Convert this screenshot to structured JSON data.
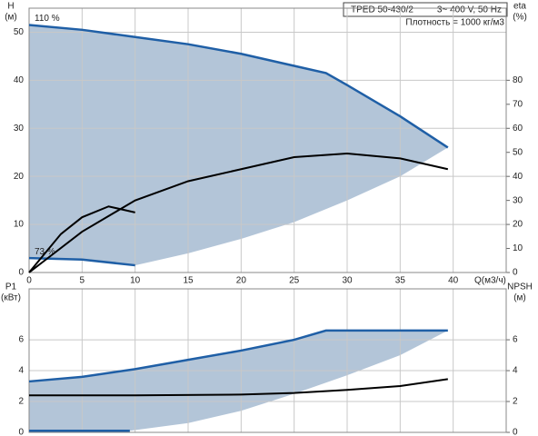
{
  "chart_data": [
    {
      "type": "line",
      "title": "TPED 50-430/2",
      "subtitle": "3~ 400 V, 50 Hz",
      "annotation": "Плотность = 1000 кг/м3",
      "y_label": "H",
      "y_unit": "(м)",
      "y2_label": "eta",
      "y2_unit": "(%)",
      "x_label": "Q(м3/ч)",
      "xlim": [
        0,
        45
      ],
      "xticks": [
        0,
        5,
        10,
        15,
        20,
        25,
        30,
        35,
        40
      ],
      "show_xtick_labels": true,
      "ylim": [
        0,
        55
      ],
      "yticks": [
        0,
        10,
        20,
        30,
        40,
        50
      ],
      "y2lim": [
        0,
        110
      ],
      "y2ticks": [
        0,
        10,
        20,
        30,
        40,
        50,
        60,
        70,
        80
      ],
      "grid": true,
      "area": {
        "color": "#b3c5d8",
        "x": [
          10,
          15,
          20,
          25,
          30,
          35,
          39.5
        ],
        "values": [
          1.5,
          4,
          7,
          10.5,
          15,
          20,
          26
        ]
      },
      "series": [
        {
          "name": "110 %",
          "color": "#1f5fa6",
          "x": [
            0,
            5,
            10,
            15,
            20,
            25,
            28,
            30,
            35,
            39.5
          ],
          "values": [
            51.5,
            50.5,
            49,
            47.5,
            45.5,
            43,
            41.5,
            39,
            32.5,
            26
          ]
        },
        {
          "name": "73 %",
          "color": "#1f5fa6",
          "x": [
            0,
            5,
            10
          ],
          "values": [
            3,
            2.7,
            1.5
          ]
        },
        {
          "color": "#000000",
          "axis": "y2",
          "x": [
            0,
            5,
            10,
            15,
            20,
            25,
            30,
            35,
            39.5
          ],
          "values": [
            0,
            17,
            30,
            38,
            43,
            48,
            49.5,
            47.5,
            43
          ]
        },
        {
          "color": "#000000",
          "axis": "y2",
          "x": [
            0,
            3,
            5,
            7.5,
            10
          ],
          "values": [
            0,
            16,
            23,
            27.5,
            25
          ]
        }
      ]
    },
    {
      "type": "line",
      "y_label": "P1",
      "y_unit": "(кВт)",
      "y2_label": "NPSH",
      "y2_unit": "(м)",
      "xlim": [
        0,
        45
      ],
      "xticks": [
        0,
        5,
        10,
        15,
        20,
        25,
        30,
        35,
        40
      ],
      "show_xtick_labels": false,
      "ylim": [
        0,
        9.3
      ],
      "yticks": [
        0,
        2,
        4,
        6
      ],
      "y2lim": [
        0,
        9.3
      ],
      "y2ticks": [
        0,
        2,
        4,
        6
      ],
      "grid": true,
      "area": {
        "color": "#b3c5d8",
        "x": [
          9.5,
          15,
          20,
          25,
          30,
          35,
          39.5
        ],
        "values": [
          0.1,
          0.6,
          1.4,
          2.5,
          3.7,
          5,
          6.6
        ]
      },
      "series": [
        {
          "color": "#1f5fa6",
          "x": [
            0,
            5,
            10,
            15,
            20,
            25,
            28,
            39.5
          ],
          "values": [
            3.3,
            3.6,
            4.1,
            4.7,
            5.3,
            6,
            6.6,
            6.6
          ]
        },
        {
          "color": "#1f5fa6",
          "x": [
            0,
            9.5
          ],
          "values": [
            0.1,
            0.1
          ]
        },
        {
          "color": "#000000",
          "axis": "y2",
          "x": [
            0,
            10,
            20,
            25,
            30,
            35,
            39.5
          ],
          "values": [
            2.4,
            2.4,
            2.45,
            2.55,
            2.75,
            3,
            3.45
          ]
        }
      ]
    }
  ]
}
